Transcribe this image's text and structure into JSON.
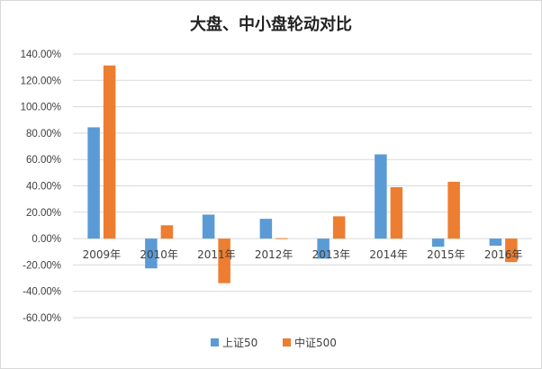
{
  "chart_data": {
    "type": "bar",
    "title": "大盘、中小盘轮动对比",
    "xlabel": "",
    "ylabel": "",
    "categories": [
      "2009年",
      "2010年",
      "2011年",
      "2012年",
      "2013年",
      "2014年",
      "2015年",
      "2016年"
    ],
    "series": [
      {
        "name": "上证50",
        "color": "#5b9bd5",
        "values": [
          84.4,
          -22.6,
          18.2,
          15.0,
          -15.2,
          63.9,
          -6.2,
          -5.4
        ]
      },
      {
        "name": "中证500",
        "color": "#ed7d31",
        "values": [
          131.3,
          10.1,
          -33.8,
          0.3,
          16.9,
          39.0,
          43.1,
          -17.8
        ]
      }
    ],
    "ylim": [
      -60,
      140
    ],
    "ytick_step": 20,
    "ytick_labels": [
      "-60.00%",
      "-40.00%",
      "-20.00%",
      "0.00%",
      "20.00%",
      "40.00%",
      "60.00%",
      "80.00%",
      "100.00%",
      "120.00%",
      "140.00%"
    ],
    "grid": true,
    "gridline_color": "#d9d9d9",
    "legend_position": "bottom"
  }
}
